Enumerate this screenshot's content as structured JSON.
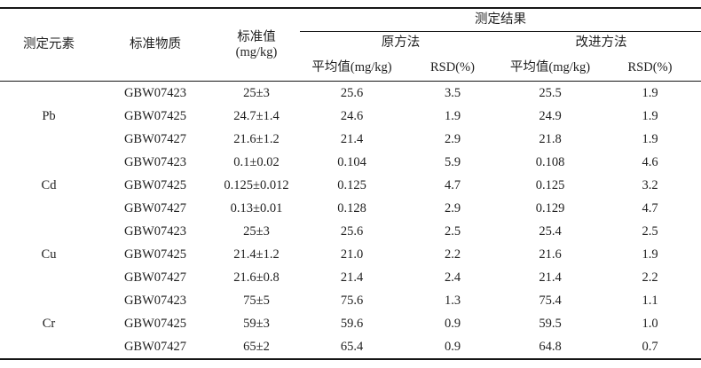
{
  "colors": {
    "text": "#1f1f1f",
    "rule": "#161616",
    "background": "#ffffff"
  },
  "table": {
    "headers": {
      "element": "测定元素",
      "material": "标准物质",
      "standard_line1": "标准值",
      "standard_line2": "(mg/kg)",
      "results_group": "测定结果",
      "method_original": "原方法",
      "method_improved": "改进方法",
      "mean_label": "平均值(mg/kg)",
      "rsd_label": "RSD(%)"
    },
    "groups": [
      {
        "element": "Pb",
        "rows": [
          {
            "material": "GBW07423",
            "standard": "25±3",
            "orig_mean": "25.6",
            "orig_rsd": "3.5",
            "impr_mean": "25.5",
            "impr_rsd": "1.9"
          },
          {
            "material": "GBW07425",
            "standard": "24.7±1.4",
            "orig_mean": "24.6",
            "orig_rsd": "1.9",
            "impr_mean": "24.9",
            "impr_rsd": "1.9"
          },
          {
            "material": "GBW07427",
            "standard": "21.6±1.2",
            "orig_mean": "21.4",
            "orig_rsd": "2.9",
            "impr_mean": "21.8",
            "impr_rsd": "1.9"
          }
        ]
      },
      {
        "element": "Cd",
        "rows": [
          {
            "material": "GBW07423",
            "standard": "0.1±0.02",
            "orig_mean": "0.104",
            "orig_rsd": "5.9",
            "impr_mean": "0.108",
            "impr_rsd": "4.6"
          },
          {
            "material": "GBW07425",
            "standard": "0.125±0.012",
            "orig_mean": "0.125",
            "orig_rsd": "4.7",
            "impr_mean": "0.125",
            "impr_rsd": "3.2"
          },
          {
            "material": "GBW07427",
            "standard": "0.13±0.01",
            "orig_mean": "0.128",
            "orig_rsd": "2.9",
            "impr_mean": "0.129",
            "impr_rsd": "4.7"
          }
        ]
      },
      {
        "element": "Cu",
        "rows": [
          {
            "material": "GBW07423",
            "standard": "25±3",
            "orig_mean": "25.6",
            "orig_rsd": "2.5",
            "impr_mean": "25.4",
            "impr_rsd": "2.5"
          },
          {
            "material": "GBW07425",
            "standard": "21.4±1.2",
            "orig_mean": "21.0",
            "orig_rsd": "2.2",
            "impr_mean": "21.6",
            "impr_rsd": "1.9"
          },
          {
            "material": "GBW07427",
            "standard": "21.6±0.8",
            "orig_mean": "21.4",
            "orig_rsd": "2.4",
            "impr_mean": "21.4",
            "impr_rsd": "2.2"
          }
        ]
      },
      {
        "element": "Cr",
        "rows": [
          {
            "material": "GBW07423",
            "standard": "75±5",
            "orig_mean": "75.6",
            "orig_rsd": "1.3",
            "impr_mean": "75.4",
            "impr_rsd": "1.1"
          },
          {
            "material": "GBW07425",
            "standard": "59±3",
            "orig_mean": "59.6",
            "orig_rsd": "0.9",
            "impr_mean": "59.5",
            "impr_rsd": "1.0"
          },
          {
            "material": "GBW07427",
            "standard": "65±2",
            "orig_mean": "65.4",
            "orig_rsd": "0.9",
            "impr_mean": "64.8",
            "impr_rsd": "0.7"
          }
        ]
      }
    ]
  }
}
